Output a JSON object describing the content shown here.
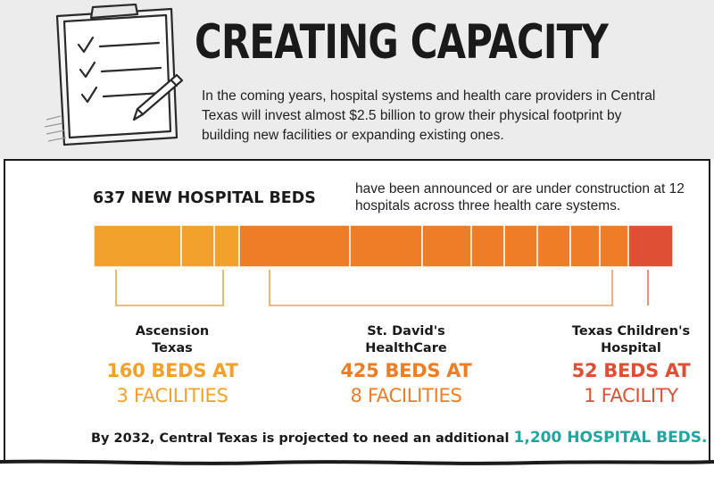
{
  "header": {
    "title": "CREATING CAPACITY",
    "intro": "In the coming years, hospital systems and health care providers in Central Texas will invest almost $2.5 billion to grow their physical footprint by building new facilities or expanding existing ones."
  },
  "summary": {
    "headline": "637 NEW HOSPITAL BEDS",
    "description": "have been announced or are under construction at 12 hospitals across three health care systems."
  },
  "systems": [
    {
      "name_line1": "Ascension",
      "name_line2": "Texas",
      "beds": "160 BEDS AT",
      "facilities": "3 FACILITIES",
      "color": "#f2a12c",
      "segments": 3
    },
    {
      "name_line1": "St. David's",
      "name_line2": "HealthCare",
      "beds": "425 BEDS AT",
      "facilities": "8 FACILITIES",
      "color": "#ef7d25",
      "segments": 8
    },
    {
      "name_line1": "Texas Children's",
      "name_line2": "Hospital",
      "beds": "52 BEDS AT",
      "facilities": "1 FACILITY",
      "color": "#de4f33",
      "segments": 1
    }
  ],
  "footer": {
    "text": "By 2032, Central Texas is projected to need an additional",
    "highlight": "1,200 HOSPITAL BEDS.",
    "highlight_color": "#1fa6a0"
  },
  "icons": {
    "illustration": "clipboard-checklist-pencil-icon"
  }
}
